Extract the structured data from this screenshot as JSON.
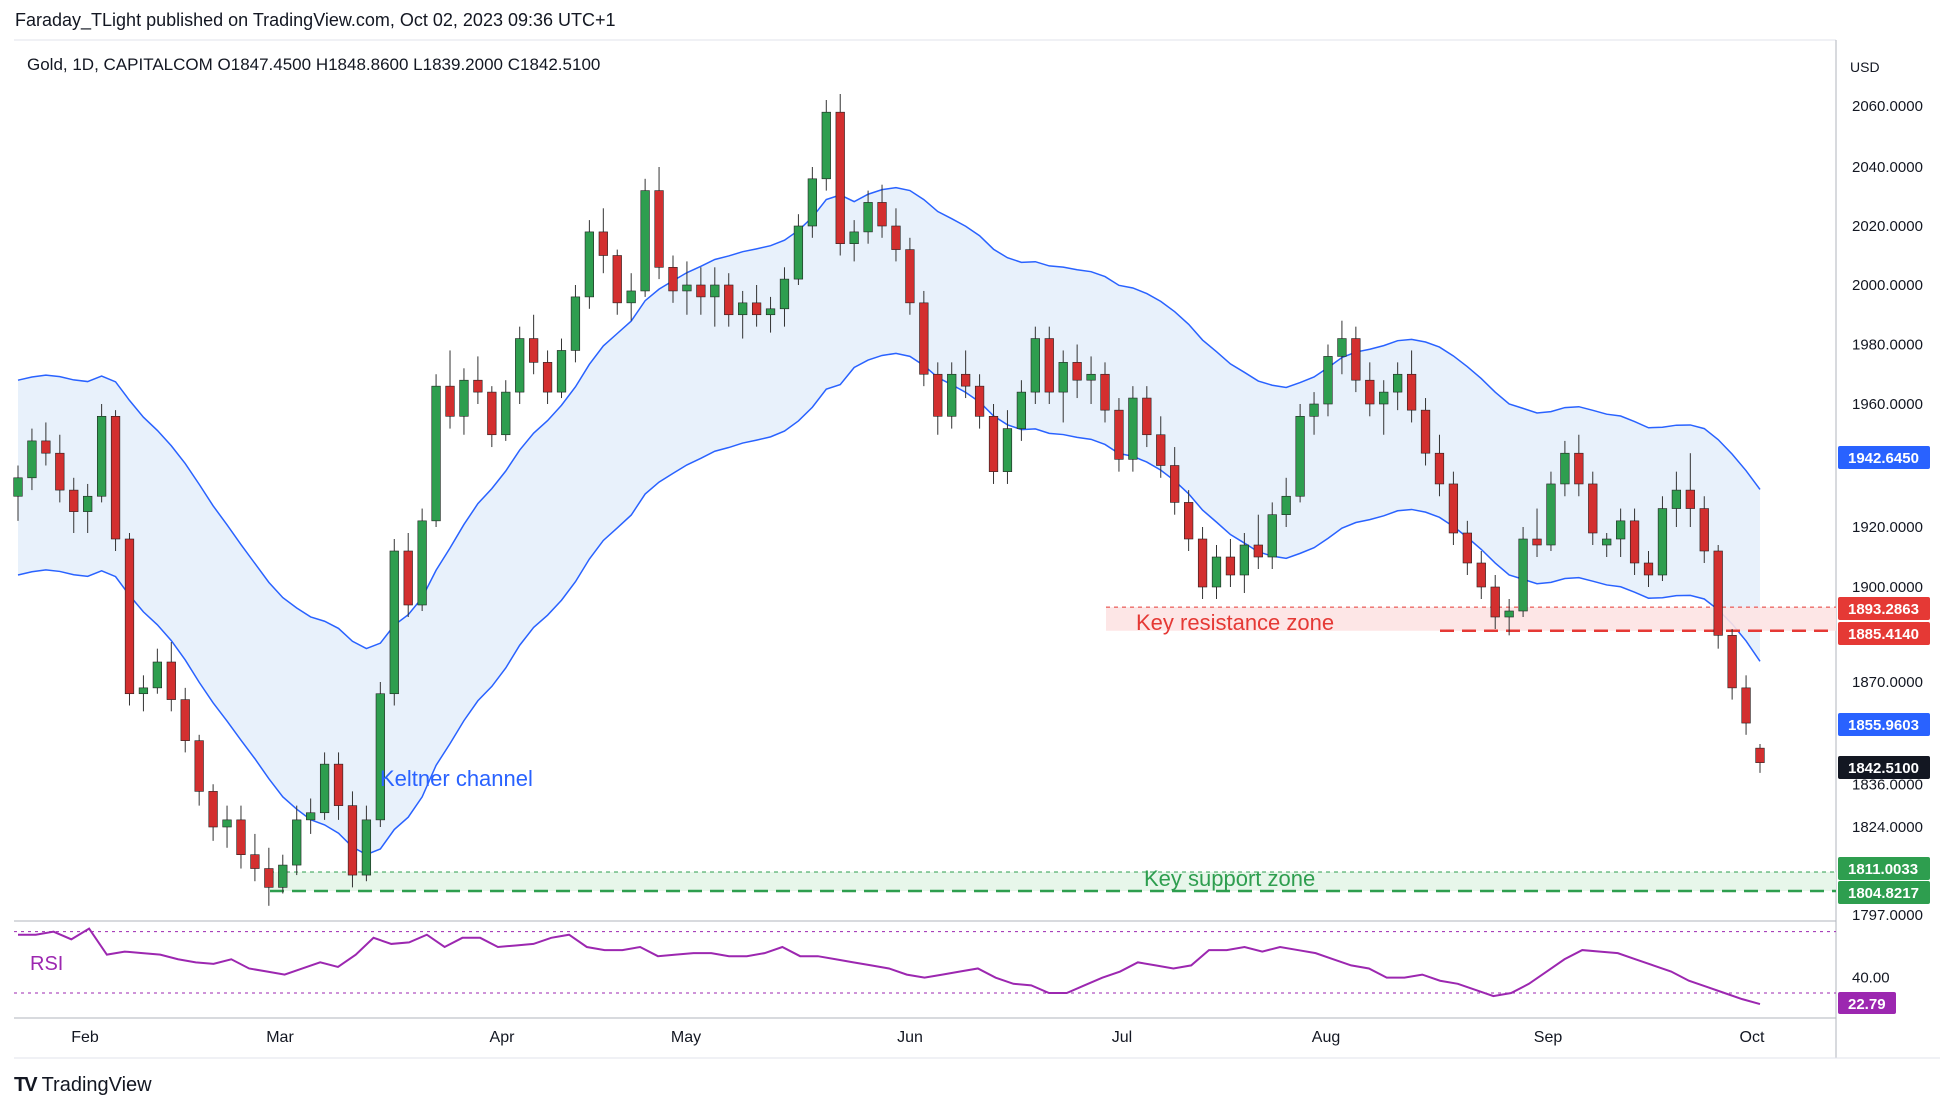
{
  "header": {
    "publish_text": "Faraday_TLight published on TradingView.com, Oct 02, 2023 09:36 UTC+1",
    "legend_text": "Gold, 1D, CAPITALCOM  O1847.4500  H1848.8600  L1839.2000  C1842.5100"
  },
  "brand": {
    "logo": "TV",
    "name": "TradingView"
  },
  "colors": {
    "up": "#26a69a",
    "up_body": "#2e9e4f",
    "down": "#d32f2f",
    "keltner_line": "#2962ff",
    "keltner_fill": "#e8f1fb",
    "resistance": "#e53935",
    "support": "#2e9e4f",
    "rsi": "#9c27b0"
  },
  "chart_data": {
    "type": "candlestick",
    "symbol": "Gold",
    "interval": "1D",
    "exchange": "CAPITALCOM",
    "currency_label": "USD",
    "y_ticks": [
      "2060.0000",
      "2040.0000",
      "2020.0000",
      "2000.0000",
      "1980.0000",
      "1960.0000",
      "1920.0000",
      "1900.0000",
      "1870.0000",
      "1824.0000"
    ],
    "x_ticks": [
      "Feb",
      "Mar",
      "Apr",
      "May",
      "Jun",
      "Jul",
      "Aug",
      "Sep",
      "Oct"
    ],
    "price_labels": [
      {
        "text": "1942.6450",
        "role": "keltner-upper"
      },
      {
        "text": "1893.2863",
        "role": "resistance-top"
      },
      {
        "text": "1885.4140",
        "role": "resistance-bottom"
      },
      {
        "text": "1855.9603",
        "role": "keltner-lower"
      },
      {
        "text": "1842.5100",
        "role": "last-price"
      },
      {
        "text": "1811.0033",
        "role": "support-top"
      },
      {
        "text": "1804.8217",
        "role": "support-bottom"
      }
    ],
    "partial_tick_labels": [
      "1836.0000",
      "1797.0000"
    ],
    "annotations": {
      "keltner": "Keltner channel",
      "resistance": "Key resistance zone",
      "support": "Key support zone"
    },
    "zones": {
      "resistance": [
        1885.414,
        1893.2863
      ],
      "support": [
        1804.8217,
        1811.0033
      ]
    },
    "rsi": {
      "label": "RSI",
      "tick": "40.00",
      "last": "22.79",
      "overbought": 70,
      "oversold": 30,
      "values": [
        68,
        68,
        70,
        65,
        72,
        55,
        57,
        56,
        55,
        52,
        50,
        49,
        52,
        46,
        44,
        42,
        46,
        50,
        47,
        55,
        66,
        62,
        63,
        68,
        60,
        66,
        66,
        60,
        61,
        62,
        66,
        68,
        60,
        58,
        58,
        60,
        54,
        55,
        56,
        56,
        54,
        54,
        56,
        60,
        54,
        54,
        52,
        50,
        48,
        46,
        42,
        40,
        42,
        44,
        46,
        40,
        36,
        35,
        30,
        30,
        35,
        40,
        44,
        50,
        48,
        46,
        48,
        58,
        58,
        60,
        57,
        60,
        58,
        56,
        52,
        48,
        46,
        40,
        40,
        42,
        38,
        36,
        32,
        28,
        30,
        36,
        44,
        52,
        58,
        57,
        56,
        52,
        48,
        44,
        38,
        34,
        30,
        26,
        22.79
      ]
    },
    "candles": [
      [
        1930,
        1940,
        1922,
        1936
      ],
      [
        1936,
        1952,
        1932,
        1948
      ],
      [
        1948,
        1954,
        1940,
        1944
      ],
      [
        1944,
        1950,
        1928,
        1932
      ],
      [
        1932,
        1936,
        1918,
        1925
      ],
      [
        1925,
        1934,
        1918,
        1930
      ],
      [
        1930,
        1960,
        1928,
        1956
      ],
      [
        1956,
        1958,
        1912,
        1916
      ],
      [
        1916,
        1918,
        1862,
        1866
      ],
      [
        1866,
        1872,
        1860,
        1868
      ],
      [
        1868,
        1880,
        1866,
        1876
      ],
      [
        1876,
        1882,
        1860,
        1864
      ],
      [
        1864,
        1868,
        1846,
        1850
      ],
      [
        1850,
        1852,
        1830,
        1834
      ],
      [
        1834,
        1836,
        1820,
        1824
      ],
      [
        1824,
        1830,
        1818,
        1826
      ],
      [
        1826,
        1830,
        1812,
        1816
      ],
      [
        1816,
        1822,
        1808,
        1812
      ],
      [
        1812,
        1818,
        1800,
        1806
      ],
      [
        1806,
        1816,
        1804,
        1813
      ],
      [
        1813,
        1830,
        1810,
        1826
      ],
      [
        1826,
        1832,
        1822,
        1828
      ],
      [
        1828,
        1846,
        1826,
        1842
      ],
      [
        1842,
        1846,
        1826,
        1830
      ],
      [
        1830,
        1834,
        1806,
        1810
      ],
      [
        1810,
        1830,
        1808,
        1826
      ],
      [
        1826,
        1870,
        1824,
        1866
      ],
      [
        1866,
        1916,
        1862,
        1912
      ],
      [
        1912,
        1918,
        1890,
        1894
      ],
      [
        1894,
        1926,
        1892,
        1922
      ],
      [
        1922,
        1970,
        1920,
        1966
      ],
      [
        1966,
        1978,
        1952,
        1956
      ],
      [
        1956,
        1972,
        1950,
        1968
      ],
      [
        1968,
        1976,
        1960,
        1964
      ],
      [
        1964,
        1966,
        1946,
        1950
      ],
      [
        1950,
        1968,
        1948,
        1964
      ],
      [
        1964,
        1986,
        1960,
        1982
      ],
      [
        1982,
        1990,
        1970,
        1974
      ],
      [
        1974,
        1978,
        1960,
        1964
      ],
      [
        1964,
        1982,
        1962,
        1978
      ],
      [
        1978,
        2000,
        1974,
        1996
      ],
      [
        1996,
        2022,
        1992,
        2018
      ],
      [
        2018,
        2026,
        2004,
        2010
      ],
      [
        2010,
        2012,
        1990,
        1994
      ],
      [
        1994,
        2004,
        1988,
        1998
      ],
      [
        1998,
        2036,
        1996,
        2032
      ],
      [
        2032,
        2040,
        2002,
        2006
      ],
      [
        2006,
        2010,
        1994,
        1998
      ],
      [
        1998,
        2008,
        1990,
        2000
      ],
      [
        2000,
        2006,
        1990,
        1996
      ],
      [
        1996,
        2006,
        1986,
        2000
      ],
      [
        2000,
        2004,
        1986,
        1990
      ],
      [
        1990,
        1998,
        1982,
        1994
      ],
      [
        1994,
        2000,
        1986,
        1990
      ],
      [
        1990,
        1996,
        1984,
        1992
      ],
      [
        1992,
        2006,
        1986,
        2002
      ],
      [
        2002,
        2024,
        2000,
        2020
      ],
      [
        2020,
        2040,
        2016,
        2036
      ],
      [
        2036,
        2062,
        2032,
        2058
      ],
      [
        2058,
        2064,
        2010,
        2014
      ],
      [
        2014,
        2022,
        2008,
        2018
      ],
      [
        2018,
        2032,
        2014,
        2028
      ],
      [
        2028,
        2034,
        2016,
        2020
      ],
      [
        2020,
        2026,
        2008,
        2012
      ],
      [
        2012,
        2016,
        1990,
        1994
      ],
      [
        1994,
        1998,
        1966,
        1970
      ],
      [
        1970,
        1974,
        1950,
        1956
      ],
      [
        1956,
        1974,
        1952,
        1970
      ],
      [
        1970,
        1978,
        1962,
        1966
      ],
      [
        1966,
        1970,
        1952,
        1956
      ],
      [
        1956,
        1960,
        1934,
        1938
      ],
      [
        1938,
        1958,
        1934,
        1952
      ],
      [
        1952,
        1968,
        1948,
        1964
      ],
      [
        1964,
        1986,
        1960,
        1982
      ],
      [
        1982,
        1986,
        1960,
        1964
      ],
      [
        1964,
        1978,
        1954,
        1974
      ],
      [
        1974,
        1980,
        1962,
        1968
      ],
      [
        1968,
        1976,
        1960,
        1970
      ],
      [
        1970,
        1974,
        1954,
        1958
      ],
      [
        1958,
        1962,
        1938,
        1942
      ],
      [
        1942,
        1966,
        1938,
        1962
      ],
      [
        1962,
        1966,
        1946,
        1950
      ],
      [
        1950,
        1956,
        1936,
        1940
      ],
      [
        1940,
        1946,
        1924,
        1928
      ],
      [
        1928,
        1932,
        1912,
        1916
      ],
      [
        1916,
        1920,
        1896,
        1900
      ],
      [
        1900,
        1914,
        1896,
        1910
      ],
      [
        1910,
        1916,
        1900,
        1904
      ],
      [
        1904,
        1918,
        1898,
        1914
      ],
      [
        1914,
        1924,
        1906,
        1910
      ],
      [
        1910,
        1928,
        1906,
        1924
      ],
      [
        1924,
        1936,
        1920,
        1930
      ],
      [
        1930,
        1960,
        1928,
        1956
      ],
      [
        1956,
        1964,
        1950,
        1960
      ],
      [
        1960,
        1980,
        1956,
        1976
      ],
      [
        1976,
        1988,
        1970,
        1982
      ],
      [
        1982,
        1986,
        1964,
        1968
      ],
      [
        1968,
        1974,
        1956,
        1960
      ],
      [
        1960,
        1968,
        1950,
        1964
      ],
      [
        1964,
        1974,
        1958,
        1970
      ],
      [
        1970,
        1978,
        1954,
        1958
      ],
      [
        1958,
        1962,
        1940,
        1944
      ],
      [
        1944,
        1950,
        1930,
        1934
      ],
      [
        1934,
        1938,
        1914,
        1918
      ],
      [
        1918,
        1922,
        1904,
        1908
      ],
      [
        1908,
        1912,
        1896,
        1900
      ],
      [
        1900,
        1904,
        1886,
        1890
      ],
      [
        1890,
        1896,
        1884,
        1892
      ],
      [
        1892,
        1920,
        1890,
        1916
      ],
      [
        1916,
        1926,
        1910,
        1914
      ],
      [
        1914,
        1938,
        1912,
        1934
      ],
      [
        1934,
        1948,
        1930,
        1944
      ],
      [
        1944,
        1950,
        1930,
        1934
      ],
      [
        1934,
        1938,
        1914,
        1918
      ],
      [
        1914,
        1918,
        1910,
        1916
      ],
      [
        1916,
        1926,
        1910,
        1922
      ],
      [
        1922,
        1926,
        1904,
        1908
      ],
      [
        1908,
        1912,
        1900,
        1904
      ],
      [
        1904,
        1930,
        1902,
        1926
      ],
      [
        1926,
        1938,
        1920,
        1932
      ],
      [
        1932,
        1944,
        1920,
        1926
      ],
      [
        1926,
        1930,
        1908,
        1912
      ],
      [
        1912,
        1914,
        1880,
        1884
      ],
      [
        1884,
        1886,
        1864,
        1868
      ],
      [
        1868,
        1872,
        1852,
        1856
      ],
      [
        1847.45,
        1848.86,
        1839.2,
        1842.51
      ]
    ]
  }
}
